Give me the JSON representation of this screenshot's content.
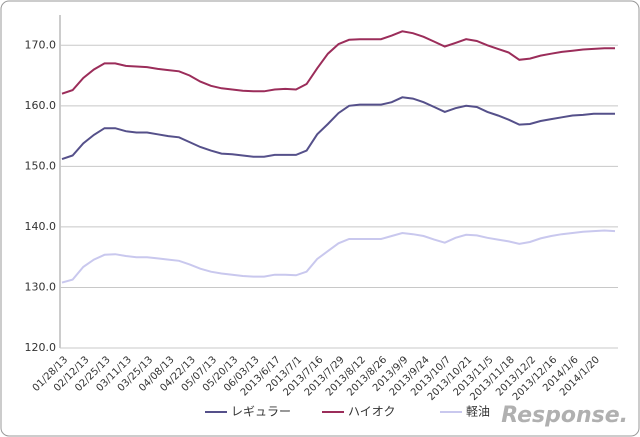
{
  "chart_data": {
    "type": "line",
    "categories": [
      "01/28/13",
      null,
      "02/12/13",
      null,
      "02/25/13",
      null,
      "03/11/13",
      null,
      "03/25/13",
      null,
      "04/08/13",
      null,
      "04/22/13",
      null,
      "05/07/13",
      null,
      "05/20/13",
      null,
      "06/03/13",
      null,
      "2013/6/17",
      null,
      "2013/7/1",
      null,
      "2013/7/16",
      null,
      "2013/7/29",
      null,
      "2013/8/12",
      null,
      "2013/8/26",
      null,
      "2013/9/9",
      null,
      "2013/9/24",
      null,
      "2013/10/7",
      null,
      "2013/10/21",
      null,
      "2013/11/5",
      null,
      "2013/11/18",
      null,
      "2013/12/2",
      null,
      "2013/12/16",
      null,
      "2014/1/6",
      null,
      "2014/1/20",
      null,
      null
    ],
    "series": [
      {
        "name": "レギュラー",
        "color": "#55508a",
        "values": [
          151.2,
          151.8,
          153.8,
          155.2,
          156.3,
          156.3,
          155.8,
          155.6,
          155.6,
          155.3,
          155.0,
          154.8,
          154.0,
          153.2,
          152.6,
          152.1,
          152.0,
          151.8,
          151.6,
          151.6,
          151.9,
          151.9,
          151.9,
          152.6,
          155.3,
          157.0,
          158.8,
          160.0,
          160.2,
          160.2,
          160.2,
          160.6,
          161.4,
          161.2,
          160.6,
          159.8,
          159.0,
          159.6,
          160.0,
          159.8,
          159.0,
          158.4,
          157.7,
          156.9,
          157.0,
          157.5,
          157.8,
          158.1,
          158.4,
          158.5,
          158.7,
          158.7,
          158.7
        ]
      },
      {
        "name": "ハイオク",
        "color": "#9b2d5a",
        "values": [
          162.0,
          162.6,
          164.6,
          166.0,
          167.0,
          167.0,
          166.6,
          166.5,
          166.4,
          166.1,
          165.9,
          165.7,
          165.0,
          164.0,
          163.3,
          162.9,
          162.7,
          162.5,
          162.4,
          162.4,
          162.7,
          162.8,
          162.7,
          163.6,
          166.2,
          168.6,
          170.2,
          170.9,
          171.0,
          171.0,
          171.0,
          171.6,
          172.3,
          172.0,
          171.4,
          170.6,
          169.8,
          170.4,
          171.0,
          170.7,
          170.0,
          169.4,
          168.8,
          167.6,
          167.8,
          168.3,
          168.6,
          168.9,
          169.1,
          169.3,
          169.4,
          169.5,
          169.5
        ]
      },
      {
        "name": "軽油",
        "color": "#c9c8ee",
        "values": [
          130.8,
          131.3,
          133.4,
          134.6,
          135.4,
          135.5,
          135.2,
          135.0,
          135.0,
          134.8,
          134.6,
          134.4,
          133.8,
          133.1,
          132.6,
          132.3,
          132.1,
          131.9,
          131.8,
          131.8,
          132.1,
          132.1,
          132.0,
          132.6,
          134.7,
          136.0,
          137.3,
          138.0,
          138.0,
          138.0,
          138.0,
          138.5,
          139.0,
          138.8,
          138.5,
          137.9,
          137.4,
          138.2,
          138.7,
          138.6,
          138.2,
          137.9,
          137.6,
          137.2,
          137.5,
          138.1,
          138.5,
          138.8,
          139.0,
          139.2,
          139.3,
          139.4,
          139.3
        ]
      }
    ],
    "ylim": [
      120,
      175
    ],
    "yticks": [
      {
        "value": 120,
        "label": "120.0"
      },
      {
        "value": 130,
        "label": "130.0"
      },
      {
        "value": 140,
        "label": "140.0"
      },
      {
        "value": 150,
        "label": "150.0"
      },
      {
        "value": 160,
        "label": "160.0"
      },
      {
        "value": 170,
        "label": "170.0"
      }
    ],
    "grid": true,
    "legend": "bottom",
    "watermark": "Response."
  }
}
